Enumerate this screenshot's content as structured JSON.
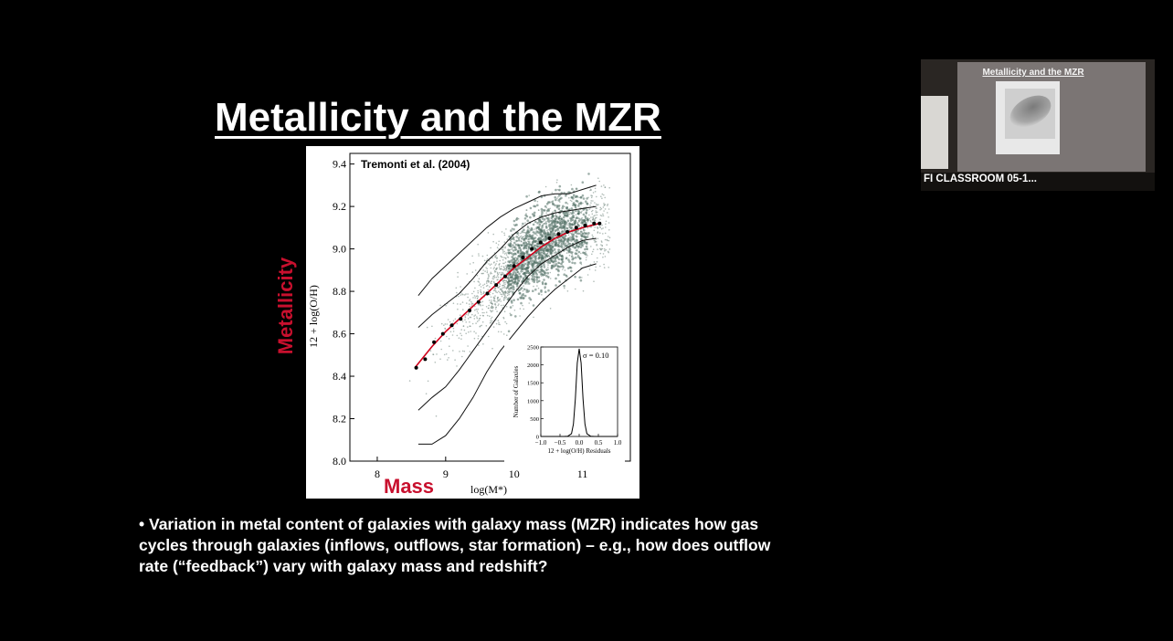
{
  "slide": {
    "title": "Metallicity and the MZR",
    "side_labels": {
      "y": "Metallicity",
      "x": "Mass"
    },
    "bullet": "• Variation in metal content of galaxies with galaxy mass (MZR) indicates how gas cycles through galaxies (inflows, outflows, star formation) – e.g.,  how does outflow rate (“feedback”) vary with galaxy mass and redshift?"
  },
  "figure": {
    "citation": "Tremonti et al. (2004)",
    "colors": {
      "fit_line": "#d0001a",
      "points": "#000000",
      "scatter": "#4f6e63"
    }
  },
  "chart_data": [
    {
      "type": "scatter",
      "title": "",
      "xlabel": "log(M*)",
      "ylabel": "12 + log(O/H)",
      "xlim": [
        7.6,
        11.7
      ],
      "ylim": [
        8.0,
        9.45
      ],
      "xticks": [
        "8",
        "9",
        "10",
        "11"
      ],
      "yticks": [
        "8.0",
        "8.2",
        "8.4",
        "8.6",
        "8.8",
        "9.0",
        "9.2",
        "9.4"
      ],
      "series": [
        {
          "kind": "median_binned_points",
          "x": [
            8.57,
            8.7,
            8.83,
            8.96,
            9.09,
            9.22,
            9.35,
            9.48,
            9.61,
            9.74,
            9.87,
            10.0,
            10.13,
            10.26,
            10.39,
            10.52,
            10.65,
            10.78,
            10.91,
            11.04,
            11.17,
            11.25
          ],
          "y": [
            8.44,
            8.48,
            8.56,
            8.6,
            8.64,
            8.67,
            8.71,
            8.75,
            8.79,
            8.83,
            8.87,
            8.92,
            8.96,
            9.0,
            9.03,
            9.05,
            9.07,
            9.08,
            9.1,
            9.11,
            9.12,
            9.12
          ]
        },
        {
          "kind": "fit_curve",
          "x": [
            8.55,
            8.8,
            9.0,
            9.2,
            9.4,
            9.6,
            9.8,
            10.0,
            10.2,
            10.4,
            10.6,
            10.8,
            11.0,
            11.25
          ],
          "y": [
            8.44,
            8.54,
            8.61,
            8.67,
            8.73,
            8.79,
            8.85,
            8.91,
            8.96,
            9.01,
            9.05,
            9.08,
            9.1,
            9.12
          ]
        },
        {
          "kind": "contour_2.5pct",
          "x": [
            8.6,
            8.8,
            9.0,
            9.2,
            9.4,
            9.6,
            9.8,
            10.0,
            10.2,
            10.4,
            10.6,
            10.8,
            11.0,
            11.2
          ],
          "y": [
            8.08,
            8.08,
            8.12,
            8.2,
            8.3,
            8.42,
            8.52,
            8.6,
            8.68,
            8.75,
            8.81,
            8.86,
            8.91,
            8.93
          ]
        },
        {
          "kind": "contour_16pct",
          "x": [
            8.6,
            8.8,
            9.0,
            9.2,
            9.4,
            9.6,
            9.8,
            10.0,
            10.2,
            10.4,
            10.6,
            10.8,
            11.0,
            11.2
          ],
          "y": [
            8.24,
            8.3,
            8.35,
            8.43,
            8.52,
            8.61,
            8.7,
            8.79,
            8.87,
            8.93,
            8.97,
            9.01,
            9.04,
            9.05
          ]
        },
        {
          "kind": "contour_84pct",
          "x": [
            8.6,
            8.8,
            9.0,
            9.2,
            9.4,
            9.6,
            9.8,
            10.0,
            10.2,
            10.4,
            10.6,
            10.8,
            11.0,
            11.2
          ],
          "y": [
            8.63,
            8.69,
            8.74,
            8.79,
            8.86,
            8.94,
            9.0,
            9.07,
            9.12,
            9.15,
            9.17,
            9.18,
            9.19,
            9.2
          ]
        },
        {
          "kind": "contour_97.5pct",
          "x": [
            8.6,
            8.8,
            9.0,
            9.2,
            9.4,
            9.6,
            9.8,
            10.0,
            10.2,
            10.4,
            10.6,
            10.8,
            11.0,
            11.2
          ],
          "y": [
            8.78,
            8.86,
            8.92,
            8.98,
            9.04,
            9.1,
            9.15,
            9.19,
            9.22,
            9.25,
            9.26,
            9.26,
            9.28,
            9.3
          ]
        }
      ]
    },
    {
      "type": "line",
      "title": "",
      "annotation": "σ = 0.10",
      "xlabel": "12 + log(O/H) Residuals",
      "ylabel": "Number of Galaxies",
      "xlim": [
        -1.0,
        1.0
      ],
      "ylim": [
        0,
        2500
      ],
      "xticks": [
        "−1.0",
        "−0.5",
        "0.0",
        "0.5",
        "1.0"
      ],
      "yticks": [
        "0",
        "500",
        "1000",
        "1500",
        "2000",
        "2500"
      ],
      "series": [
        {
          "x": [
            -1.0,
            -0.4,
            -0.3,
            -0.2,
            -0.15,
            -0.1,
            -0.05,
            0.0,
            0.05,
            0.1,
            0.15,
            0.2,
            0.3,
            0.4,
            1.0
          ],
          "y": [
            0,
            0,
            5,
            80,
            350,
            1050,
            2050,
            2450,
            2050,
            1050,
            350,
            80,
            5,
            0,
            0
          ]
        }
      ]
    }
  ],
  "video_thumbnail": {
    "slide_title": "Metallicity and the MZR",
    "room_label": "FI CLASSROOM 05-1..."
  }
}
